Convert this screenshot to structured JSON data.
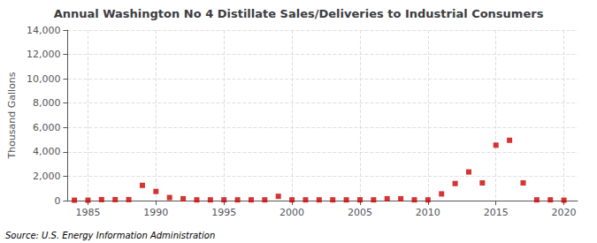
{
  "chart_data": {
    "type": "scatter",
    "title": "Annual Washington No 4 Distillate Sales/Deliveries to Industrial Consumers",
    "ylabel": "Thousand Gallons",
    "annotation": "Source: U.S. Energy Information Administration",
    "x": [
      1984,
      1985,
      1986,
      1987,
      1988,
      1989,
      1990,
      1991,
      1992,
      1993,
      1994,
      1995,
      1996,
      1997,
      1998,
      1999,
      2000,
      2001,
      2002,
      2003,
      2004,
      2005,
      2006,
      2007,
      2008,
      2009,
      2010,
      2011,
      2012,
      2013,
      2014,
      2015,
      2016,
      2017,
      2018,
      2019,
      2020
    ],
    "values": [
      30,
      30,
      80,
      80,
      80,
      1250,
      750,
      250,
      150,
      60,
      60,
      60,
      60,
      60,
      60,
      350,
      60,
      60,
      60,
      60,
      60,
      60,
      60,
      150,
      150,
      60,
      60,
      550,
      1400,
      2350,
      1450,
      4550,
      4950,
      1450,
      60,
      60,
      30
    ],
    "color": "#cc0000",
    "marker": "square",
    "xlim": [
      1983.5,
      2021
    ],
    "xticks": [
      1985,
      1990,
      1995,
      2000,
      2005,
      2010,
      2015,
      2020
    ],
    "ylim": [
      0,
      14000
    ],
    "yticks": [
      0,
      {
        "value": 2000,
        "label": "2,000"
      },
      {
        "value": 4000,
        "label": "4,000"
      },
      {
        "value": 6000,
        "label": "6,000"
      },
      {
        "value": 8000,
        "label": "8,000"
      },
      {
        "value": 10000,
        "label": "10,000"
      },
      {
        "value": 12000,
        "label": "12,000"
      },
      {
        "value": 14000,
        "label": "14,000"
      }
    ],
    "grid": true
  }
}
